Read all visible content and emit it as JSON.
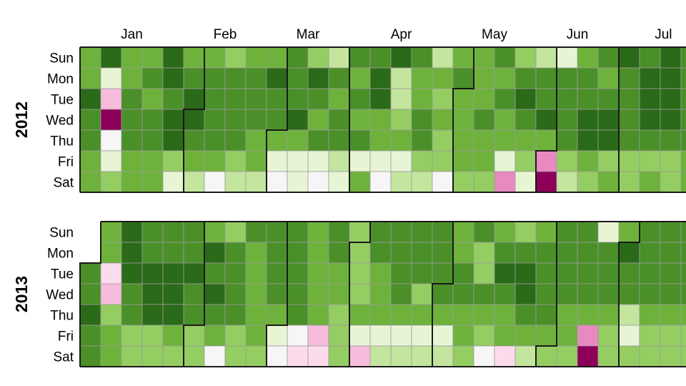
{
  "chart_data": {
    "type": "heatmap",
    "title": "",
    "months": [
      "Jan",
      "Feb",
      "Mar",
      "Apr",
      "May",
      "Jun",
      "Jul"
    ],
    "days": [
      "Sun",
      "Mon",
      "Tue",
      "Wed",
      "Thu",
      "Fri",
      "Sat"
    ],
    "palette": [
      "#8c0059",
      "#d1499e",
      "#e889c1",
      "#f6bcdc",
      "#fcdcec",
      "#f6f6f6",
      "#e8f5d5",
      "#c3e59e",
      "#94cd61",
      "#6eb23b",
      "#4a8f28",
      "#2b6a18"
    ],
    "years": [
      {
        "label": "2012",
        "start_row": 0,
        "month_start_cols": [
          0,
          5,
          9,
          13,
          18,
          22,
          26
        ],
        "cells": [
          [
            9,
            11,
            9,
            9,
            11,
            9,
            9,
            8,
            9,
            9,
            10,
            8,
            7,
            10,
            10,
            11,
            10,
            7,
            9,
            9,
            10,
            8,
            7,
            6,
            9,
            10,
            11,
            10,
            11,
            10
          ],
          [
            9,
            6,
            9,
            10,
            11,
            10,
            10,
            10,
            10,
            11,
            10,
            11,
            10,
            9,
            11,
            7,
            9,
            9,
            10,
            9,
            9,
            10,
            10,
            10,
            10,
            9,
            10,
            11,
            11,
            10
          ],
          [
            11,
            3,
            10,
            9,
            10,
            11,
            10,
            10,
            10,
            10,
            10,
            10,
            9,
            10,
            11,
            7,
            9,
            8,
            9,
            9,
            10,
            11,
            10,
            10,
            10,
            10,
            10,
            11,
            11,
            10
          ],
          [
            10,
            0,
            10,
            10,
            11,
            11,
            10,
            10,
            10,
            10,
            11,
            9,
            10,
            9,
            9,
            8,
            10,
            9,
            9,
            10,
            9,
            10,
            11,
            10,
            11,
            11,
            10,
            11,
            11,
            10
          ],
          [
            10,
            5,
            10,
            10,
            11,
            10,
            10,
            10,
            9,
            9,
            9,
            10,
            10,
            10,
            9,
            9,
            10,
            8,
            9,
            9,
            9,
            9,
            9,
            10,
            11,
            11,
            10,
            10,
            10,
            10
          ],
          [
            9,
            6,
            9,
            9,
            8,
            9,
            9,
            8,
            9,
            6,
            6,
            6,
            7,
            6,
            6,
            6,
            8,
            8,
            9,
            9,
            6,
            8,
            2,
            8,
            9,
            8,
            8,
            8,
            8,
            9
          ],
          [
            9,
            8,
            9,
            9,
            6,
            7,
            5,
            7,
            7,
            5,
            6,
            5,
            6,
            9,
            5,
            7,
            7,
            5,
            8,
            8,
            2,
            6,
            0,
            7,
            8,
            9,
            8,
            9,
            8,
            9
          ]
        ]
      },
      {
        "label": "2013",
        "start_row": 2,
        "month_start_cols": [
          0,
          5,
          9,
          13,
          17,
          22,
          26
        ],
        "cells": [
          [
            null,
            9,
            11,
            10,
            10,
            10,
            9,
            8,
            10,
            10,
            10,
            9,
            10,
            8,
            10,
            10,
            10,
            10,
            9,
            10,
            9,
            8,
            9,
            10,
            10,
            6,
            9,
            10,
            10,
            10
          ],
          [
            null,
            9,
            11,
            10,
            10,
            10,
            11,
            10,
            9,
            10,
            10,
            9,
            10,
            8,
            10,
            10,
            10,
            10,
            9,
            8,
            10,
            10,
            10,
            10,
            10,
            10,
            11,
            10,
            10,
            10
          ],
          [
            10,
            4,
            11,
            11,
            11,
            11,
            10,
            10,
            9,
            10,
            10,
            9,
            9,
            8,
            9,
            10,
            10,
            10,
            10,
            8,
            11,
            11,
            10,
            10,
            10,
            10,
            10,
            10,
            10,
            10
          ],
          [
            10,
            3,
            10,
            11,
            11,
            10,
            11,
            10,
            9,
            10,
            10,
            9,
            9,
            8,
            9,
            10,
            8,
            10,
            10,
            10,
            10,
            11,
            10,
            10,
            10,
            10,
            10,
            10,
            10,
            10
          ],
          [
            11,
            8,
            10,
            11,
            11,
            10,
            10,
            10,
            9,
            9,
            10,
            9,
            8,
            9,
            9,
            9,
            9,
            9,
            9,
            9,
            9,
            10,
            10,
            9,
            9,
            9,
            7,
            9,
            9,
            9
          ],
          [
            10,
            9,
            8,
            8,
            9,
            8,
            9,
            8,
            9,
            6,
            5,
            3,
            8,
            6,
            6,
            6,
            6,
            6,
            9,
            8,
            9,
            9,
            9,
            9,
            2,
            8,
            6,
            8,
            8,
            8
          ],
          [
            10,
            9,
            8,
            8,
            8,
            8,
            5,
            8,
            8,
            5,
            4,
            4,
            8,
            3,
            7,
            7,
            7,
            7,
            8,
            5,
            4,
            7,
            8,
            8,
            0,
            8,
            8,
            8,
            8,
            8
          ]
        ]
      }
    ]
  }
}
